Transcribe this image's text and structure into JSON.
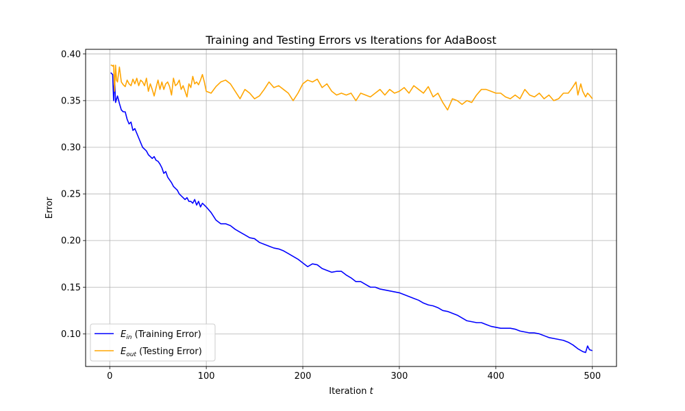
{
  "chart_data": {
    "type": "line",
    "title": "Training and Testing Errors vs Iterations for AdaBoost",
    "xlabel": "Iteration",
    "xlabel_var": "t",
    "ylabel": "Error",
    "xlim": [
      -25,
      525
    ],
    "ylim": [
      0.065,
      0.405
    ],
    "xticks": [
      0,
      100,
      200,
      300,
      400,
      500
    ],
    "yticks": [
      0.1,
      0.15,
      0.2,
      0.25,
      0.3,
      0.35,
      0.4
    ],
    "grid": true,
    "legend_position": "lower-left",
    "series": [
      {
        "name": "E_in (Training Error)",
        "legend_var": "E",
        "legend_sub": "in",
        "legend_rest": " (Training Error)",
        "color": "#0000ff",
        "x": [
          1,
          2,
          3,
          4,
          5,
          6,
          8,
          10,
          12,
          14,
          16,
          18,
          20,
          22,
          24,
          26,
          28,
          30,
          32,
          34,
          36,
          38,
          40,
          42,
          44,
          46,
          48,
          50,
          52,
          54,
          56,
          58,
          60,
          62,
          64,
          66,
          68,
          70,
          72,
          74,
          76,
          78,
          80,
          82,
          84,
          86,
          88,
          90,
          92,
          94,
          96,
          98,
          100,
          105,
          110,
          115,
          120,
          125,
          130,
          135,
          140,
          145,
          150,
          155,
          160,
          165,
          170,
          175,
          180,
          185,
          190,
          195,
          200,
          205,
          210,
          215,
          220,
          225,
          230,
          235,
          240,
          245,
          250,
          255,
          260,
          265,
          270,
          275,
          280,
          285,
          290,
          295,
          300,
          305,
          310,
          315,
          320,
          325,
          330,
          335,
          340,
          345,
          350,
          355,
          360,
          365,
          370,
          375,
          380,
          385,
          390,
          395,
          400,
          405,
          410,
          415,
          420,
          425,
          430,
          435,
          440,
          445,
          450,
          455,
          460,
          465,
          470,
          475,
          480,
          485,
          490,
          493,
          495,
          497,
          500
        ],
        "y": [
          0.38,
          0.379,
          0.378,
          0.35,
          0.376,
          0.348,
          0.355,
          0.347,
          0.34,
          0.338,
          0.338,
          0.33,
          0.325,
          0.327,
          0.318,
          0.32,
          0.315,
          0.31,
          0.305,
          0.3,
          0.298,
          0.296,
          0.292,
          0.29,
          0.288,
          0.29,
          0.286,
          0.285,
          0.282,
          0.278,
          0.272,
          0.274,
          0.268,
          0.265,
          0.262,
          0.258,
          0.256,
          0.254,
          0.25,
          0.248,
          0.246,
          0.244,
          0.246,
          0.242,
          0.242,
          0.24,
          0.244,
          0.238,
          0.242,
          0.236,
          0.24,
          0.238,
          0.236,
          0.23,
          0.222,
          0.218,
          0.218,
          0.216,
          0.212,
          0.209,
          0.206,
          0.203,
          0.202,
          0.198,
          0.196,
          0.194,
          0.192,
          0.191,
          0.189,
          0.186,
          0.183,
          0.18,
          0.176,
          0.172,
          0.175,
          0.174,
          0.17,
          0.168,
          0.166,
          0.167,
          0.167,
          0.163,
          0.16,
          0.156,
          0.156,
          0.153,
          0.15,
          0.15,
          0.148,
          0.147,
          0.146,
          0.145,
          0.144,
          0.142,
          0.14,
          0.138,
          0.136,
          0.133,
          0.131,
          0.13,
          0.128,
          0.125,
          0.124,
          0.122,
          0.12,
          0.117,
          0.114,
          0.113,
          0.112,
          0.112,
          0.11,
          0.108,
          0.107,
          0.106,
          0.106,
          0.106,
          0.105,
          0.103,
          0.102,
          0.101,
          0.101,
          0.1,
          0.098,
          0.096,
          0.095,
          0.094,
          0.093,
          0.091,
          0.088,
          0.084,
          0.081,
          0.08,
          0.087,
          0.083,
          0.082
        ]
      },
      {
        "name": "E_out (Testing Error)",
        "legend_var": "E",
        "legend_sub": "out",
        "legend_rest": " (Testing Error)",
        "color": "#ffa500",
        "x": [
          1,
          2,
          3,
          4,
          5,
          6,
          7,
          8,
          9,
          10,
          12,
          14,
          16,
          18,
          20,
          22,
          24,
          26,
          28,
          30,
          32,
          34,
          36,
          38,
          40,
          42,
          44,
          46,
          48,
          50,
          52,
          54,
          56,
          58,
          60,
          62,
          64,
          66,
          68,
          70,
          72,
          74,
          76,
          78,
          80,
          82,
          84,
          86,
          88,
          90,
          92,
          94,
          96,
          98,
          100,
          105,
          110,
          115,
          120,
          125,
          130,
          135,
          140,
          145,
          150,
          155,
          160,
          165,
          170,
          175,
          180,
          185,
          190,
          195,
          200,
          205,
          210,
          215,
          220,
          225,
          230,
          235,
          240,
          245,
          250,
          255,
          260,
          265,
          270,
          275,
          280,
          285,
          290,
          295,
          300,
          305,
          310,
          315,
          320,
          325,
          330,
          335,
          340,
          345,
          350,
          355,
          360,
          365,
          370,
          375,
          380,
          385,
          390,
          395,
          400,
          405,
          410,
          415,
          420,
          425,
          430,
          435,
          440,
          445,
          450,
          455,
          460,
          465,
          470,
          475,
          478,
          480,
          483,
          485,
          488,
          490,
          493,
          495,
          497,
          500
        ],
        "y": [
          0.388,
          0.388,
          0.387,
          0.388,
          0.36,
          0.388,
          0.372,
          0.37,
          0.378,
          0.386,
          0.37,
          0.367,
          0.365,
          0.372,
          0.368,
          0.366,
          0.373,
          0.368,
          0.374,
          0.366,
          0.372,
          0.37,
          0.366,
          0.374,
          0.36,
          0.368,
          0.362,
          0.355,
          0.364,
          0.372,
          0.362,
          0.37,
          0.362,
          0.368,
          0.37,
          0.365,
          0.356,
          0.374,
          0.366,
          0.368,
          0.372,
          0.362,
          0.366,
          0.36,
          0.354,
          0.368,
          0.364,
          0.376,
          0.368,
          0.37,
          0.367,
          0.372,
          0.378,
          0.37,
          0.36,
          0.358,
          0.365,
          0.37,
          0.372,
          0.368,
          0.36,
          0.352,
          0.362,
          0.358,
          0.352,
          0.355,
          0.362,
          0.37,
          0.364,
          0.366,
          0.362,
          0.358,
          0.35,
          0.358,
          0.368,
          0.372,
          0.37,
          0.373,
          0.364,
          0.368,
          0.36,
          0.356,
          0.358,
          0.356,
          0.358,
          0.35,
          0.358,
          0.356,
          0.354,
          0.358,
          0.362,
          0.356,
          0.362,
          0.358,
          0.36,
          0.364,
          0.358,
          0.366,
          0.362,
          0.358,
          0.365,
          0.354,
          0.358,
          0.348,
          0.34,
          0.352,
          0.35,
          0.346,
          0.35,
          0.348,
          0.356,
          0.362,
          0.362,
          0.36,
          0.358,
          0.358,
          0.354,
          0.352,
          0.356,
          0.352,
          0.362,
          0.356,
          0.354,
          0.358,
          0.352,
          0.356,
          0.35,
          0.352,
          0.358,
          0.358,
          0.362,
          0.365,
          0.37,
          0.356,
          0.368,
          0.36,
          0.354,
          0.358,
          0.356,
          0.352
        ]
      }
    ]
  }
}
